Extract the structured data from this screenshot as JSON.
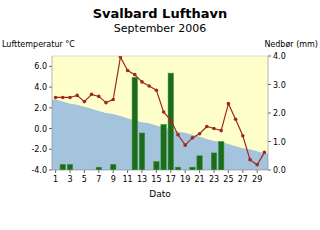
{
  "chart_data": {
    "type": "line",
    "title": "Svalbard Lufthavn",
    "subtitle": "September 2006",
    "y_label": "Lufttemperatur °C",
    "y2_label": "Nedbør (mm)",
    "x_label": "Dato",
    "categories": [
      "1",
      null,
      "3",
      null,
      "5",
      null,
      "7",
      null,
      "9",
      null,
      "11",
      null,
      "13",
      null,
      "15",
      null,
      "17",
      null,
      "19",
      null,
      "21",
      null,
      "23",
      null,
      "25",
      null,
      "27",
      null,
      "29",
      null
    ],
    "ylim": [
      -4,
      7
    ],
    "yticks": [
      {
        "value": -4,
        "label": "-4.0"
      },
      {
        "value": -2,
        "label": "-2.0"
      },
      {
        "value": 0,
        "label": "0.0"
      },
      {
        "value": 2,
        "label": "2.0"
      },
      {
        "value": 4,
        "label": "4.0"
      },
      {
        "value": 6,
        "label": "6.0"
      }
    ],
    "y2lim": [
      0,
      4
    ],
    "y2ticks": [
      {
        "value": 0,
        "label": "0.0"
      },
      {
        "value": 1,
        "label": "1.0"
      },
      {
        "value": 2,
        "label": "2.0"
      },
      {
        "value": 3,
        "label": "3.0"
      },
      {
        "value": 4,
        "label": "4.0"
      }
    ],
    "grid": false,
    "series": [
      {
        "type": "area",
        "color": "#a3c4dc",
        "values": [
          2.8,
          2.6,
          2.4,
          2.3,
          2.1,
          1.9,
          1.7,
          1.5,
          1.4,
          1.2,
          1.0,
          0.8,
          0.6,
          0.5,
          0.3,
          0.1,
          -0.1,
          -0.3,
          -0.4,
          -0.6,
          -0.8,
          -1.0,
          -1.2,
          -1.3,
          -1.5,
          -1.7,
          -1.9,
          -2.0,
          -2.2,
          -2.4
        ]
      },
      {
        "type": "bar",
        "axis": "y2",
        "color": "#1e6b1e",
        "values": [
          0,
          0.2,
          0.2,
          0,
          0,
          0,
          0.1,
          0,
          0.2,
          0,
          0,
          3.25,
          1.3,
          0,
          0.3,
          1.6,
          3.4,
          0.1,
          0,
          0.1,
          0.5,
          0,
          0.6,
          1.0,
          0,
          0,
          0,
          0,
          0,
          0
        ]
      },
      {
        "type": "line",
        "color": "#a0281e",
        "marker": "circle",
        "values": [
          3.0,
          3.0,
          3.0,
          3.2,
          2.6,
          3.3,
          3.1,
          2.5,
          2.8,
          6.9,
          5.6,
          5.2,
          4.5,
          4.1,
          3.7,
          1.6,
          0.8,
          -0.6,
          -1.6,
          -0.9,
          -0.5,
          0.2,
          0.0,
          -0.2,
          2.4,
          0.9,
          -0.7,
          -3.0,
          -3.5,
          -2.3
        ]
      }
    ]
  }
}
